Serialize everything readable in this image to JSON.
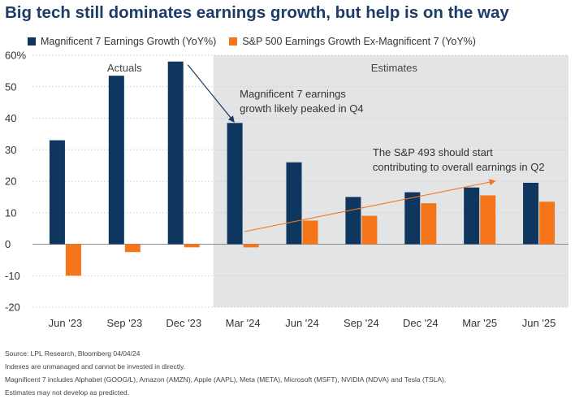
{
  "title": "Big tech still dominates earnings growth, but help is on the way",
  "colors": {
    "mag7": "#0f365e",
    "sp": "#f5761a",
    "shade": "#e2e4e6",
    "grid": "#cccccc"
  },
  "chart_data": {
    "type": "bar",
    "categories": [
      "Jun '23",
      "Sep '23",
      "Dec '23",
      "Mar '24",
      "Jun '24",
      "Sep '24",
      "Dec '24",
      "Mar '25",
      "Jun '25"
    ],
    "series": [
      {
        "name": "Magnificent 7 Earnings Growth (YoY%)",
        "values": [
          33,
          53.5,
          58,
          38.5,
          26,
          15,
          16.5,
          18,
          19.5
        ]
      },
      {
        "name": "S&P 500 Earnings Growth Ex-Magnificent 7 (YoY%)",
        "values": [
          -10,
          -2.5,
          -1,
          -1,
          7.5,
          9,
          13,
          15.5,
          13.5
        ]
      }
    ],
    "ylim": [
      -20,
      60
    ],
    "yticks": [
      {
        "v": 60,
        "label": "60%"
      },
      {
        "v": 50,
        "label": "50"
      },
      {
        "v": 40,
        "label": "40"
      },
      {
        "v": 30,
        "label": "30"
      },
      {
        "v": 20,
        "label": "20"
      },
      {
        "v": 10,
        "label": "10"
      },
      {
        "v": 0,
        "label": "0"
      },
      {
        "v": -10,
        "label": "-10"
      },
      {
        "v": -20,
        "label": "-20"
      }
    ],
    "region_labels": {
      "actuals": "Actuals",
      "estimates": "Estimates"
    },
    "estimates_start_category": "Mar '24",
    "annotations": [
      {
        "lines": [
          "Magnificent 7 earnings",
          "growth likely peaked in Q4"
        ]
      },
      {
        "lines": [
          "The S&P 493 should start",
          "contributing to overall earnings in Q2"
        ]
      }
    ]
  },
  "footnotes": [
    "Source: LPL Research, Bloomberg 04/04/24",
    "Indexes are unmanaged and cannot be invested in directly.",
    "Magnificent 7 includes Alphabet (GOOG/L), Amazon (AMZN), Apple (AAPL), Meta (META), Microsoft (MSFT), NVIDIA (NDVA) and Tesla (TSLA).",
    "Estimates may not develop as predicted."
  ]
}
